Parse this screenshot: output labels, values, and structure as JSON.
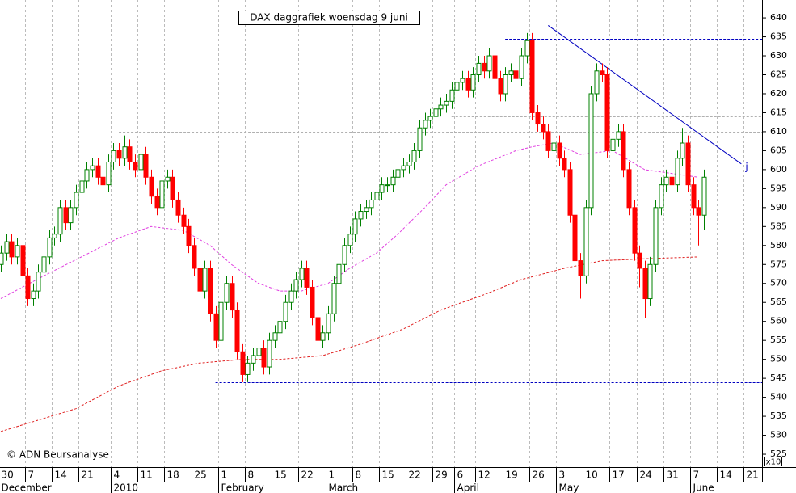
{
  "chart_data": {
    "type": "candlestick",
    "title": "DAX daggrafiek  woensdag 9 juni",
    "copyright": "© ADN Beursanalyse",
    "axis_multiplier": "x10",
    "up_color": "#008000",
    "down_color": "#ff0000",
    "grid": true,
    "ylim": [
      521.6,
      644.7
    ],
    "yticks": [
      525,
      530,
      535,
      540,
      545,
      550,
      555,
      560,
      565,
      570,
      575,
      580,
      585,
      590,
      595,
      600,
      605,
      610,
      615,
      620,
      625,
      630,
      635,
      640
    ],
    "categories": [
      "30",
      null,
      null,
      null,
      null,
      "7",
      null,
      null,
      null,
      null,
      "14",
      null,
      null,
      null,
      null,
      "21",
      null,
      null,
      null,
      null,
      null,
      "4",
      null,
      null,
      null,
      null,
      "11",
      null,
      null,
      null,
      null,
      "18",
      null,
      null,
      null,
      null,
      "25",
      null,
      null,
      null,
      null,
      "1",
      null,
      null,
      null,
      null,
      "8",
      null,
      null,
      null,
      null,
      "15",
      null,
      null,
      null,
      null,
      "22",
      null,
      null,
      null,
      null,
      "1",
      null,
      null,
      null,
      null,
      "8",
      null,
      null,
      null,
      null,
      "15",
      null,
      null,
      null,
      null,
      "22",
      null,
      null,
      null,
      null,
      "29",
      null,
      null,
      null,
      "6",
      null,
      null,
      null,
      "12",
      null,
      null,
      null,
      null,
      "19",
      null,
      null,
      null,
      null,
      "26",
      null,
      null,
      null,
      null,
      "3",
      null,
      null,
      null,
      null,
      "10",
      null,
      null,
      null,
      null,
      "17",
      null,
      null,
      null,
      null,
      "24",
      null,
      null,
      null,
      null,
      "31",
      null,
      null,
      null,
      null,
      "7",
      null,
      null,
      null,
      null,
      "14",
      null,
      null,
      null,
      null,
      "21",
      null,
      null
    ],
    "month_labels": [
      {
        "label": "December",
        "index": 0
      },
      {
        "label": "2010",
        "index": 21
      },
      {
        "label": "February",
        "index": 41
      },
      {
        "label": "March",
        "index": 61
      },
      {
        "label": "April",
        "index": 85
      },
      {
        "label": "May",
        "index": 104
      },
      {
        "label": "June",
        "index": 129
      }
    ],
    "open": [
      575,
      578,
      581,
      577,
      580,
      572,
      566,
      568,
      573,
      577,
      582,
      583,
      590,
      586,
      590,
      594,
      597,
      600,
      601,
      598,
      596,
      602,
      605,
      603,
      606,
      602,
      600,
      604,
      598,
      593,
      590,
      597,
      598,
      592,
      588,
      585,
      580,
      574,
      568,
      574,
      562,
      555,
      565,
      570,
      563,
      552,
      546,
      549,
      551,
      553,
      548,
      555,
      557,
      560,
      565,
      568,
      571,
      574,
      569,
      561,
      555,
      557,
      562,
      570,
      575,
      580,
      583,
      587,
      589,
      590,
      592,
      594,
      596,
      596,
      598,
      600,
      601,
      602,
      605,
      611,
      613,
      614,
      616,
      617,
      618,
      621,
      623,
      624,
      621,
      625,
      628,
      626,
      630,
      624,
      620,
      625,
      626,
      624,
      630,
      634,
      615,
      612,
      610,
      605,
      607,
      603,
      600,
      588,
      576,
      572,
      590,
      620,
      626,
      625,
      605,
      608,
      610,
      600,
      590,
      578,
      574,
      566,
      575,
      590,
      596,
      598,
      596,
      603,
      607,
      596,
      590,
      588,
      null,
      null,
      null,
      null,
      null,
      null,
      null,
      null,
      null,
      null
    ],
    "high": [
      580,
      583,
      583,
      582,
      582,
      574,
      570,
      575,
      579,
      584,
      585,
      592,
      592,
      592,
      596,
      599,
      602,
      603,
      603,
      600,
      604,
      607,
      607,
      609,
      608,
      604,
      606,
      606,
      600,
      595,
      599,
      600,
      600,
      594,
      590,
      587,
      582,
      576,
      576,
      576,
      564,
      567,
      572,
      572,
      565,
      554,
      551,
      553,
      555,
      555,
      557,
      559,
      562,
      567,
      570,
      573,
      576,
      576,
      571,
      563,
      559,
      564,
      572,
      577,
      582,
      585,
      589,
      591,
      592,
      594,
      596,
      598,
      598,
      600,
      602,
      603,
      604,
      607,
      613,
      615,
      616,
      618,
      619,
      620,
      623,
      625,
      626,
      626,
      627,
      630,
      630,
      632,
      632,
      626,
      627,
      628,
      628,
      632,
      636,
      636,
      617,
      614,
      612,
      609,
      609,
      605,
      602,
      590,
      578,
      592,
      622,
      628,
      628,
      627,
      610,
      612,
      612,
      602,
      592,
      580,
      576,
      577,
      592,
      598,
      600,
      600,
      605,
      611,
      609,
      598,
      592,
      600,
      null,
      null,
      null,
      null,
      null,
      null,
      null,
      null,
      null,
      null
    ],
    "low": [
      573,
      576,
      575,
      575,
      570,
      564,
      564,
      566,
      571,
      575,
      580,
      581,
      584,
      584,
      588,
      592,
      595,
      598,
      596,
      594,
      594,
      600,
      601,
      601,
      600,
      598,
      598,
      596,
      591,
      588,
      588,
      595,
      590,
      586,
      583,
      578,
      572,
      566,
      566,
      560,
      553,
      553,
      563,
      561,
      550,
      544,
      544,
      547,
      549,
      546,
      546,
      553,
      555,
      558,
      563,
      566,
      569,
      567,
      559,
      553,
      553,
      555,
      560,
      568,
      573,
      578,
      581,
      585,
      587,
      588,
      590,
      592,
      594,
      594,
      596,
      598,
      599,
      600,
      603,
      609,
      611,
      612,
      614,
      615,
      616,
      619,
      621,
      619,
      619,
      623,
      624,
      624,
      622,
      618,
      618,
      623,
      622,
      622,
      628,
      613,
      610,
      608,
      603,
      603,
      601,
      598,
      586,
      574,
      566,
      570,
      588,
      618,
      623,
      603,
      603,
      606,
      598,
      588,
      576,
      569,
      561,
      564,
      573,
      588,
      594,
      594,
      594,
      601,
      594,
      588,
      580,
      584,
      null,
      null,
      null,
      null,
      null,
      null,
      null,
      null,
      null,
      null
    ],
    "close": [
      578,
      581,
      577,
      580,
      572,
      566,
      568,
      573,
      577,
      582,
      583,
      590,
      586,
      590,
      594,
      597,
      600,
      601,
      598,
      596,
      602,
      605,
      603,
      606,
      602,
      600,
      604,
      598,
      593,
      590,
      597,
      598,
      592,
      588,
      585,
      580,
      574,
      568,
      574,
      562,
      555,
      565,
      570,
      563,
      552,
      546,
      549,
      551,
      553,
      548,
      555,
      557,
      560,
      565,
      568,
      571,
      574,
      569,
      561,
      555,
      557,
      562,
      570,
      575,
      580,
      583,
      587,
      589,
      590,
      592,
      594,
      596,
      596,
      598,
      600,
      601,
      602,
      605,
      611,
      613,
      614,
      616,
      617,
      618,
      621,
      623,
      624,
      621,
      625,
      628,
      626,
      630,
      624,
      620,
      625,
      626,
      624,
      630,
      634,
      615,
      612,
      610,
      605,
      607,
      603,
      600,
      588,
      576,
      572,
      590,
      620,
      626,
      625,
      605,
      608,
      610,
      600,
      590,
      578,
      574,
      566,
      575,
      590,
      596,
      598,
      596,
      603,
      607,
      596,
      590,
      588,
      598,
      null,
      null,
      null,
      null,
      null,
      null,
      null,
      null,
      null,
      null
    ],
    "moving_averages": [
      {
        "color": "#e040e0",
        "x": [
          0,
          8,
          15,
          22,
          28,
          34,
          39,
          43,
          48,
          52,
          56,
          61,
          65,
          70,
          74,
          79,
          83,
          89,
          96,
          99,
          103,
          108,
          114,
          120,
          125,
          130
        ],
        "values": [
          566,
          572,
          577,
          582,
          585,
          584,
          580,
          575,
          570,
          568,
          568,
          570,
          574,
          578,
          583,
          590,
          596,
          601,
          605,
          606,
          607,
          604,
          605,
          600,
          599,
          598
        ]
      },
      {
        "color": "#e02020",
        "x": [
          0,
          14,
          22,
          30,
          37,
          45,
          52,
          60,
          67,
          75,
          82,
          90,
          97,
          105,
          112,
          120,
          130
        ],
        "values": [
          531,
          537,
          543,
          547,
          549,
          550,
          550,
          551,
          554,
          558,
          563,
          567,
          571,
          574,
          576,
          576.5,
          577
        ]
      }
    ],
    "levels": [
      {
        "value": 634.5,
        "from": 94,
        "color": "#0000c0"
      },
      {
        "value": 544,
        "from": 40,
        "color": "#0000c0"
      },
      {
        "value": 531,
        "from": 0,
        "color": "#0000c0"
      },
      {
        "value": 610,
        "from": 22,
        "color": "#b0b0b0"
      },
      {
        "value": 614,
        "from": 84,
        "color": "#b0b0b0"
      }
    ],
    "trendline": {
      "x": [
        102,
        138
      ],
      "values": [
        638,
        601.5
      ],
      "color": "#0000c0",
      "label": "j"
    }
  }
}
